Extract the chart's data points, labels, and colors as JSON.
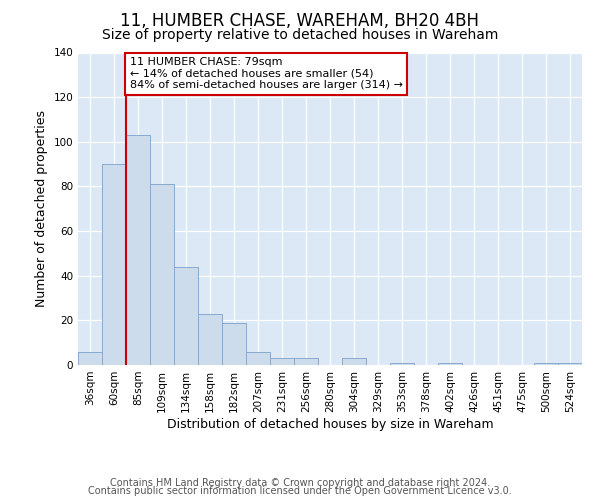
{
  "title": "11, HUMBER CHASE, WAREHAM, BH20 4BH",
  "subtitle": "Size of property relative to detached houses in Wareham",
  "xlabel": "Distribution of detached houses by size in Wareham",
  "ylabel": "Number of detached properties",
  "bar_labels": [
    "36sqm",
    "60sqm",
    "85sqm",
    "109sqm",
    "134sqm",
    "158sqm",
    "182sqm",
    "207sqm",
    "231sqm",
    "256sqm",
    "280sqm",
    "304sqm",
    "329sqm",
    "353sqm",
    "378sqm",
    "402sqm",
    "426sqm",
    "451sqm",
    "475sqm",
    "500sqm",
    "524sqm"
  ],
  "bar_heights": [
    6,
    90,
    103,
    81,
    44,
    23,
    19,
    6,
    3,
    3,
    0,
    3,
    0,
    1,
    0,
    1,
    0,
    0,
    0,
    1,
    1
  ],
  "bar_color": "#ccdcec",
  "bar_edge_color": "#88aacc",
  "ylim": [
    0,
    140
  ],
  "yticks": [
    0,
    20,
    40,
    60,
    80,
    100,
    120,
    140
  ],
  "vline_color": "#cc0000",
  "vline_x": 1.5,
  "annotation_text": "11 HUMBER CHASE: 79sqm\n← 14% of detached houses are smaller (54)\n84% of semi-detached houses are larger (314) →",
  "annotation_box_color": "#ffffff",
  "annotation_box_edge": "#cc0000",
  "footer_line1": "Contains HM Land Registry data © Crown copyright and database right 2024.",
  "footer_line2": "Contains public sector information licensed under the Open Government Licence v3.0.",
  "fig_bg_color": "#ffffff",
  "plot_bg_color": "#dce8f5",
  "title_fontsize": 12,
  "subtitle_fontsize": 10,
  "axis_label_fontsize": 9,
  "tick_fontsize": 7.5,
  "footer_fontsize": 7,
  "annotation_fontsize": 8
}
